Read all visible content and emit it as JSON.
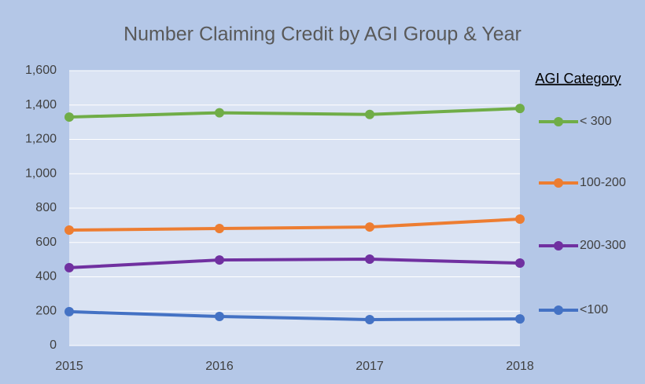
{
  "chart_data": {
    "type": "line",
    "title": "Number Claiming Credit by AGI Group & Year",
    "categories": [
      "2015",
      "2016",
      "2017",
      "2018"
    ],
    "legend_title": "AGI Category",
    "legend": "right",
    "grid": true,
    "ylim": [
      0,
      1600
    ],
    "yticks": [
      0,
      200,
      400,
      600,
      800,
      {
        "value": 1000,
        "label": "1,000"
      },
      {
        "value": 1200,
        "label": "1,200"
      },
      {
        "value": 1400,
        "label": "1,400"
      },
      {
        "value": 1600,
        "label": "1,600"
      }
    ],
    "series": [
      {
        "name": "< 300",
        "color": "#70ad47",
        "values": [
          1330,
          1355,
          1345,
          1380
        ]
      },
      {
        "name": "100-200",
        "color": "#ed7d31",
        "values": [
          672,
          681,
          690,
          736
        ]
      },
      {
        "name": "200-300",
        "color": "#7030a0",
        "values": [
          453,
          498,
          503,
          480
        ]
      },
      {
        "name": "<100",
        "color": "#4472c4",
        "values": [
          197,
          169,
          151,
          155
        ]
      }
    ]
  }
}
